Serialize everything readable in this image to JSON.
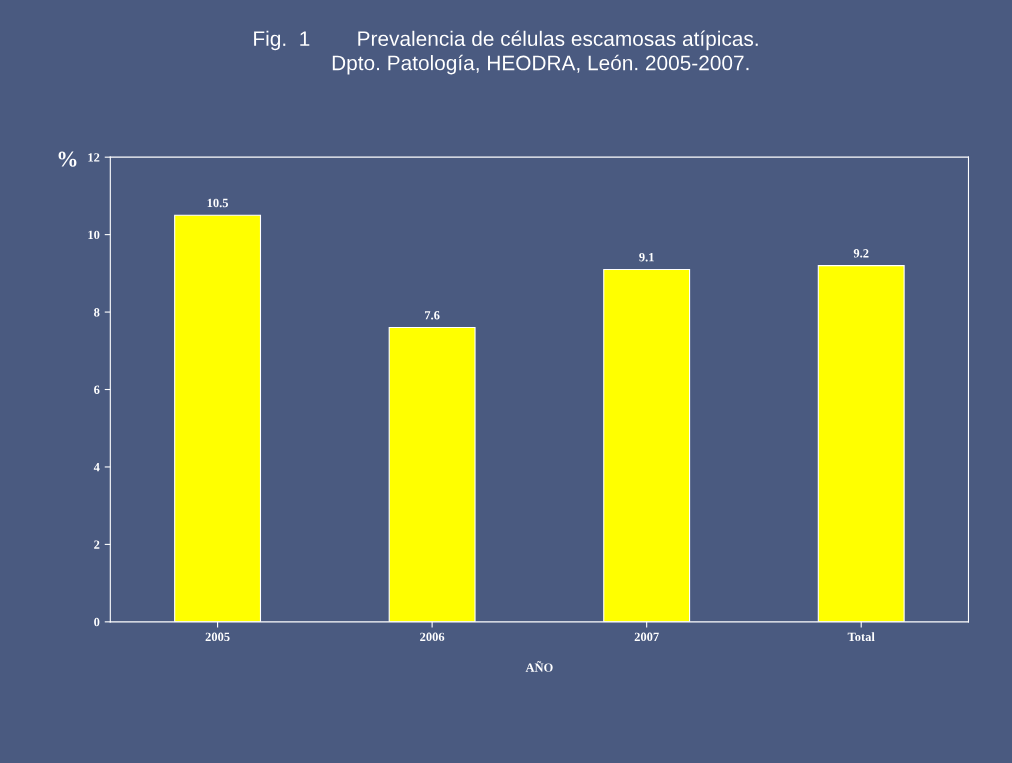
{
  "chart_data": {
    "type": "bar",
    "title": "Fig.  1        Prevalencia de células escamosas atípicas.\n            Dpto. Patología, HEODRA, León. 2005-2007.",
    "categories": [
      "2005",
      "2006",
      "2007",
      "Total"
    ],
    "values": [
      10.5,
      7.6,
      9.1,
      9.2
    ],
    "color": "#ffff00",
    "xlabel": "AÑO",
    "ylabel": "%",
    "ylim": [
      0,
      12
    ],
    "yticks": [
      0,
      2,
      4,
      6,
      8,
      10,
      12
    ],
    "data_labels": true,
    "grid": false
  }
}
